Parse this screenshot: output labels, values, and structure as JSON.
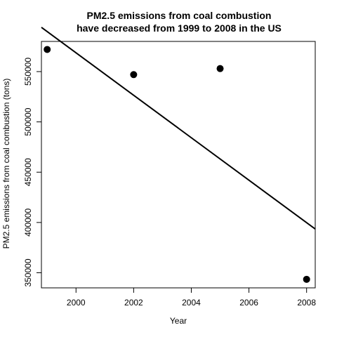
{
  "chart_data": {
    "type": "scatter",
    "title_lines": [
      "PM2.5 emissions from coal combustion",
      "have decreased from 1999 to 2008 in the US"
    ],
    "xlabel": "Year",
    "ylabel": "PM2.5 emissions from coal combustion (tons)",
    "xlim": [
      1998.8,
      2008.3
    ],
    "ylim": [
      335000,
      580000
    ],
    "x_ticks": [
      2000,
      2002,
      2004,
      2006,
      2008
    ],
    "x_tick_labels": [
      "2000",
      "2002",
      "2004",
      "2006",
      "2008"
    ],
    "y_ticks": [
      350000,
      400000,
      450000,
      500000,
      550000
    ],
    "y_tick_labels": [
      "350000",
      "400000",
      "450000",
      "500000",
      "550000"
    ],
    "points": [
      {
        "x": 1999,
        "y": 572000
      },
      {
        "x": 2002,
        "y": 547000
      },
      {
        "x": 2005,
        "y": 553000
      },
      {
        "x": 2008,
        "y": 343500
      }
    ],
    "trend_line": {
      "x": [
        1998.8,
        2008.3
      ],
      "y": [
        594000,
        393500
      ]
    },
    "grid": false,
    "point_color": "#000000",
    "line_color": "#000000"
  }
}
